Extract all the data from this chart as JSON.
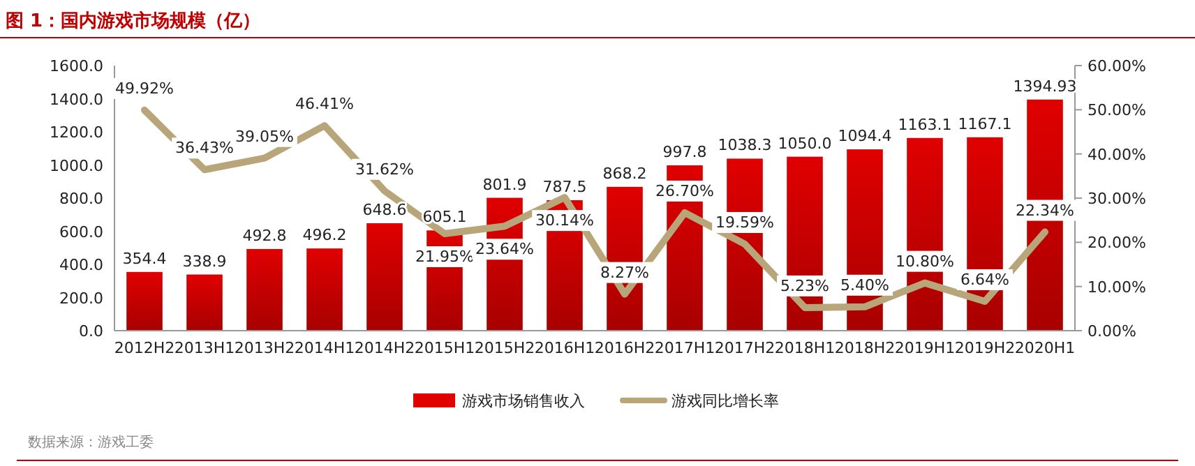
{
  "chart_data": {
    "type": "bar",
    "title": "图 1：国内游戏市场规模（亿）",
    "categories": [
      "2012H2",
      "2013H1",
      "2013H2",
      "2014H1",
      "2014H2",
      "2015H1",
      "2015H2",
      "2016H1",
      "2016H2",
      "2017H1",
      "2017H2",
      "2018H1",
      "2018H2",
      "2019H1",
      "2019H2",
      "2020H1"
    ],
    "series": [
      {
        "name": "游戏市场销售收入",
        "color": "#e00000",
        "values": [
          354.4,
          338.9,
          492.8,
          496.2,
          648.6,
          605.1,
          801.9,
          787.5,
          868.2,
          997.8,
          1038.3,
          1050.0,
          1094.4,
          1163.1,
          1167.1,
          1394.93
        ],
        "value_labels": [
          "354.4",
          "338.9",
          "492.8",
          "496.2",
          "648.6",
          "605.1",
          "801.9",
          "787.5",
          "868.2",
          "997.8",
          "1038.3",
          "1050.0",
          "1094.4",
          "1163.1",
          "1167.1",
          "1394.93"
        ]
      },
      {
        "name": "游戏同比增长率",
        "type": "line",
        "axis": "y2",
        "color": "#b8a67a",
        "values": [
          49.92,
          36.43,
          39.05,
          46.41,
          31.62,
          21.95,
          23.64,
          30.14,
          8.27,
          26.7,
          19.59,
          5.23,
          5.4,
          10.8,
          6.64,
          22.34
        ],
        "value_labels": [
          "49.92%",
          "36.43%",
          "39.05%",
          "46.41%",
          "31.62%",
          "21.95%",
          "23.64%",
          "30.14%",
          "8.27%",
          "26.70%",
          "19.59%",
          "5.23%",
          "5.40%",
          "10.80%",
          "6.64%",
          "22.34%"
        ]
      }
    ],
    "ylim": [
      0,
      1600
    ],
    "yticks": [
      {
        "value": 0,
        "label": "0.0"
      },
      {
        "value": 200,
        "label": "200.0"
      },
      {
        "value": 400,
        "label": "400.0"
      },
      {
        "value": 600,
        "label": "600.0"
      },
      {
        "value": 800,
        "label": "800.0"
      },
      {
        "value": 1000,
        "label": "1000.0"
      },
      {
        "value": 1200,
        "label": "1200.0"
      },
      {
        "value": 1400,
        "label": "1400.0"
      },
      {
        "value": 1600,
        "label": "1600.0"
      }
    ],
    "y2lim": [
      0,
      60
    ],
    "y2ticks": [
      {
        "value": 0,
        "label": "0.00%"
      },
      {
        "value": 10,
        "label": "10.00%"
      },
      {
        "value": 20,
        "label": "20.00%"
      },
      {
        "value": 30,
        "label": "30.00%"
      },
      {
        "value": 40,
        "label": "40.00%"
      },
      {
        "value": 50,
        "label": "50.00%"
      },
      {
        "value": 60,
        "label": "60.00%"
      }
    ],
    "grid": false,
    "legend": "bottom",
    "annotations": [
      "数据来源：游戏工委"
    ]
  }
}
